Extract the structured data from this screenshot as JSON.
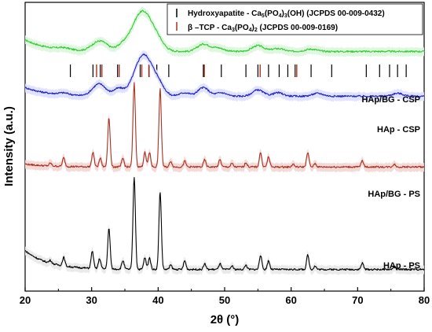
{
  "chart_data": {
    "type": "line",
    "xlabel": "2θ (°)",
    "ylabel": "Intensity (a.u.)",
    "xlim": [
      20,
      80
    ],
    "xticks": [
      20,
      30,
      40,
      50,
      60,
      70,
      80
    ],
    "yticks_shown": false,
    "legend": {
      "placement": "top-right",
      "entries": [
        {
          "symbol_color": "#000000",
          "text": "Hydroxyapatite - Ca5(PO4)3(OH) (JCPDS 00-009-0432)"
        },
        {
          "symbol_color": "#b03020",
          "text": "β –TCP - Ca3(PO4)2 (JCPDS 00-009-0169)"
        }
      ]
    },
    "reference_lines": {
      "hydroxyapatite": {
        "color": "#000000",
        "positions": [
          26.8,
          30.2,
          31.3,
          33.9,
          37.3,
          38.6,
          39.8,
          41.6,
          46.8,
          49.5,
          53.2,
          55.0,
          56.6,
          58.2,
          59.5,
          60.6,
          63.0,
          66.1,
          71.3,
          73.3,
          74.8,
          76.0,
          77.3
        ]
      },
      "beta_tcp": {
        "color": "#b03020",
        "positions": [
          30.6,
          31.4,
          34.0,
          37.4,
          38.5,
          46.8,
          55.2,
          60.7
        ]
      }
    },
    "series": [
      {
        "name": "HAp/BG - CSP",
        "color": "#33cc33",
        "fill": "#dcf5dc",
        "baseline": 0.83,
        "start_rise": 0.04,
        "peaks": [
          [
            25.8,
            0.006
          ],
          [
            30.5,
            0.018
          ],
          [
            31.7,
            0.025
          ],
          [
            34.5,
            0.015
          ],
          [
            37.3,
            0.1
          ],
          [
            38.5,
            0.05
          ],
          [
            40.0,
            0.015
          ],
          [
            46.8,
            0.025
          ],
          [
            49.0,
            0.012
          ],
          [
            55.0,
            0.02
          ],
          [
            58.0,
            0.01
          ],
          [
            63.0,
            0.008
          ]
        ],
        "peak_width": 0.9
      },
      {
        "name": "HAp - CSP",
        "color": "#1f1fbf",
        "fill": "#dde0ff",
        "baseline": 0.675,
        "start_rise": 0.03,
        "peaks": [
          [
            25.8,
            0.006
          ],
          [
            30.5,
            0.02
          ],
          [
            31.5,
            0.03
          ],
          [
            34.0,
            0.025
          ],
          [
            37.5,
            0.11
          ],
          [
            38.8,
            0.05
          ],
          [
            40.2,
            0.02
          ],
          [
            44.0,
            0.012
          ],
          [
            46.8,
            0.03
          ],
          [
            49.5,
            0.012
          ],
          [
            55.0,
            0.022
          ],
          [
            58.0,
            0.012
          ],
          [
            64.0,
            0.01
          ],
          [
            76.0,
            0.01
          ]
        ],
        "peak_width": 0.8
      },
      {
        "name": "HAp/BG - PS",
        "color": "#a83020",
        "fill": "#f3d6d2",
        "baseline": 0.43,
        "start_rise": 0.01,
        "peaks": [
          [
            23.8,
            0.01
          ],
          [
            25.8,
            0.03
          ],
          [
            30.2,
            0.05
          ],
          [
            31.3,
            0.03
          ],
          [
            32.6,
            0.17
          ],
          [
            34.7,
            0.03
          ],
          [
            36.4,
            0.29
          ],
          [
            38.0,
            0.05
          ],
          [
            38.7,
            0.05
          ],
          [
            40.3,
            0.27
          ],
          [
            41.9,
            0.02
          ],
          [
            44.0,
            0.02
          ],
          [
            47.0,
            0.025
          ],
          [
            49.3,
            0.025
          ],
          [
            51.1,
            0.012
          ],
          [
            53.2,
            0.015
          ],
          [
            55.4,
            0.05
          ],
          [
            56.6,
            0.035
          ],
          [
            60.3,
            0.01
          ],
          [
            62.5,
            0.05
          ],
          [
            63.6,
            0.012
          ],
          [
            70.7,
            0.022
          ],
          [
            75.5,
            0.01
          ]
        ],
        "peak_width": 0.18
      },
      {
        "name": "HAp - PS",
        "color": "#000000",
        "fill": "#e8e8e8",
        "baseline": 0.075,
        "start_rise": 0.065,
        "peaks": [
          [
            23.8,
            0.01
          ],
          [
            25.8,
            0.03
          ],
          [
            30.1,
            0.06
          ],
          [
            31.2,
            0.035
          ],
          [
            32.6,
            0.14
          ],
          [
            34.7,
            0.03
          ],
          [
            36.4,
            0.32
          ],
          [
            38.0,
            0.04
          ],
          [
            38.7,
            0.04
          ],
          [
            40.3,
            0.27
          ],
          [
            41.9,
            0.015
          ],
          [
            44.0,
            0.03
          ],
          [
            47.0,
            0.02
          ],
          [
            49.3,
            0.02
          ],
          [
            51.1,
            0.012
          ],
          [
            53.2,
            0.015
          ],
          [
            55.4,
            0.05
          ],
          [
            56.6,
            0.03
          ],
          [
            62.5,
            0.05
          ],
          [
            63.6,
            0.012
          ],
          [
            70.7,
            0.022
          ],
          [
            75.5,
            0.01
          ]
        ],
        "peak_width": 0.18
      }
    ]
  }
}
